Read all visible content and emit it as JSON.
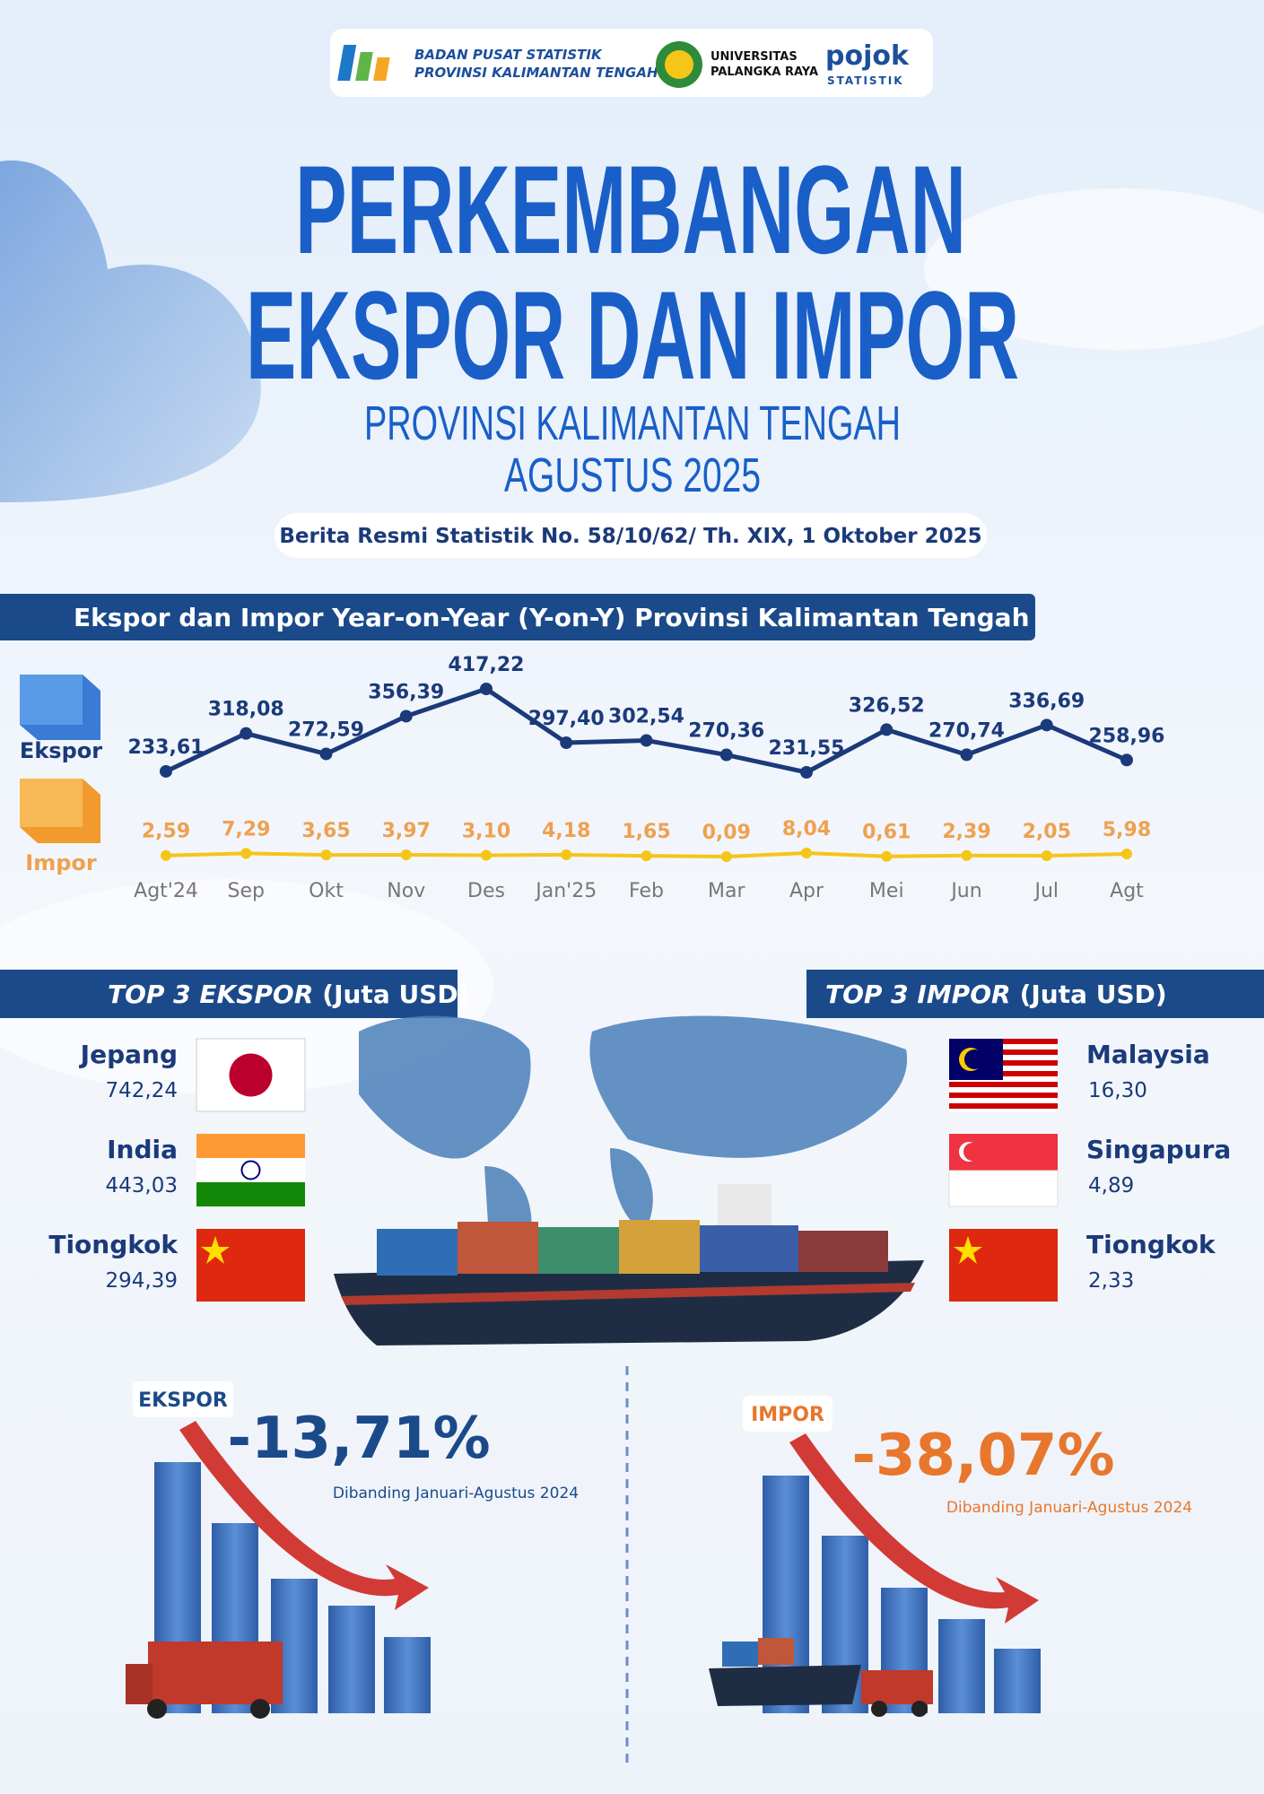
{
  "header": {
    "bps_line1": "BADAN PUSAT STATISTIK",
    "bps_line2": "PROVINSI KALIMANTAN TENGAH",
    "univ_line1": "UNIVERSITAS",
    "univ_line2": "PALANGKA RAYA",
    "pojok_line1": "pojok",
    "pojok_line2": "STATISTIK"
  },
  "title_line1": "PERKEMBANGAN",
  "title_line2": "EKSPOR DAN IMPOR",
  "subtitle_line1": "PROVINSI KALIMANTAN TENGAH",
  "subtitle_line2": "AGUSTUS 2025",
  "release": "Berita Resmi Statistik No. 58/10/62/ Th. XIX, 1 Oktober 2025",
  "chart_data": {
    "type": "line",
    "title": "Ekspor dan Impor Year-on-Year (Y-on-Y) Provinsi Kalimantan Tengah",
    "categories": [
      "Agt'24",
      "Sep",
      "Okt",
      "Nov",
      "Des",
      "Jan'25",
      "Feb",
      "Mar",
      "Apr",
      "Mei",
      "Jun",
      "Jul",
      "Agt"
    ],
    "series": [
      {
        "name": "Ekspor",
        "color": "#1b3a7a",
        "label_color": "#1b3a7a",
        "values": [
          233.61,
          318.08,
          272.59,
          356.39,
          417.22,
          297.4,
          302.54,
          270.36,
          231.55,
          326.52,
          270.74,
          336.69,
          258.96
        ],
        "value_labels": [
          "233,61",
          "318,08",
          "272,59",
          "356,39",
          "417,22",
          "297,40",
          "302,54",
          "270,36",
          "231,55",
          "326,52",
          "270,74",
          "336,69",
          "258,96"
        ]
      },
      {
        "name": "Impor",
        "color": "#f5c518",
        "label_color": "#f0a050",
        "values": [
          2.59,
          7.29,
          3.65,
          3.97,
          3.1,
          4.18,
          1.65,
          0.09,
          8.04,
          0.61,
          2.39,
          2.05,
          5.98
        ],
        "value_labels": [
          "2,59",
          "7,29",
          "3,65",
          "3,97",
          "3,10",
          "4,18",
          "1,65",
          "0,09",
          "8,04",
          "0,61",
          "2,39",
          "2,05",
          "5,98"
        ]
      }
    ]
  },
  "top_exports": {
    "title": "TOP 3 EKSPOR",
    "unit": "(Juta USD)",
    "items": [
      {
        "country": "Jepang",
        "value": "742,24"
      },
      {
        "country": "India",
        "value": "443,03"
      },
      {
        "country": "Tiongkok",
        "value": "294,39"
      }
    ]
  },
  "top_imports": {
    "title": "TOP 3 IMPOR",
    "unit": "(Juta USD)",
    "items": [
      {
        "country": "Malaysia",
        "value": "16,30"
      },
      {
        "country": "Singapura",
        "value": "4,89"
      },
      {
        "country": "Tiongkok",
        "value": "2,33"
      }
    ]
  },
  "summary_export": {
    "label": "EKSPOR",
    "change": "-13,71%",
    "note": "Dibanding Januari-Agustus 2024"
  },
  "summary_import": {
    "label": "IMPOR",
    "change": "-38,07%",
    "note": "Dibanding Januari-Agustus 2024"
  }
}
